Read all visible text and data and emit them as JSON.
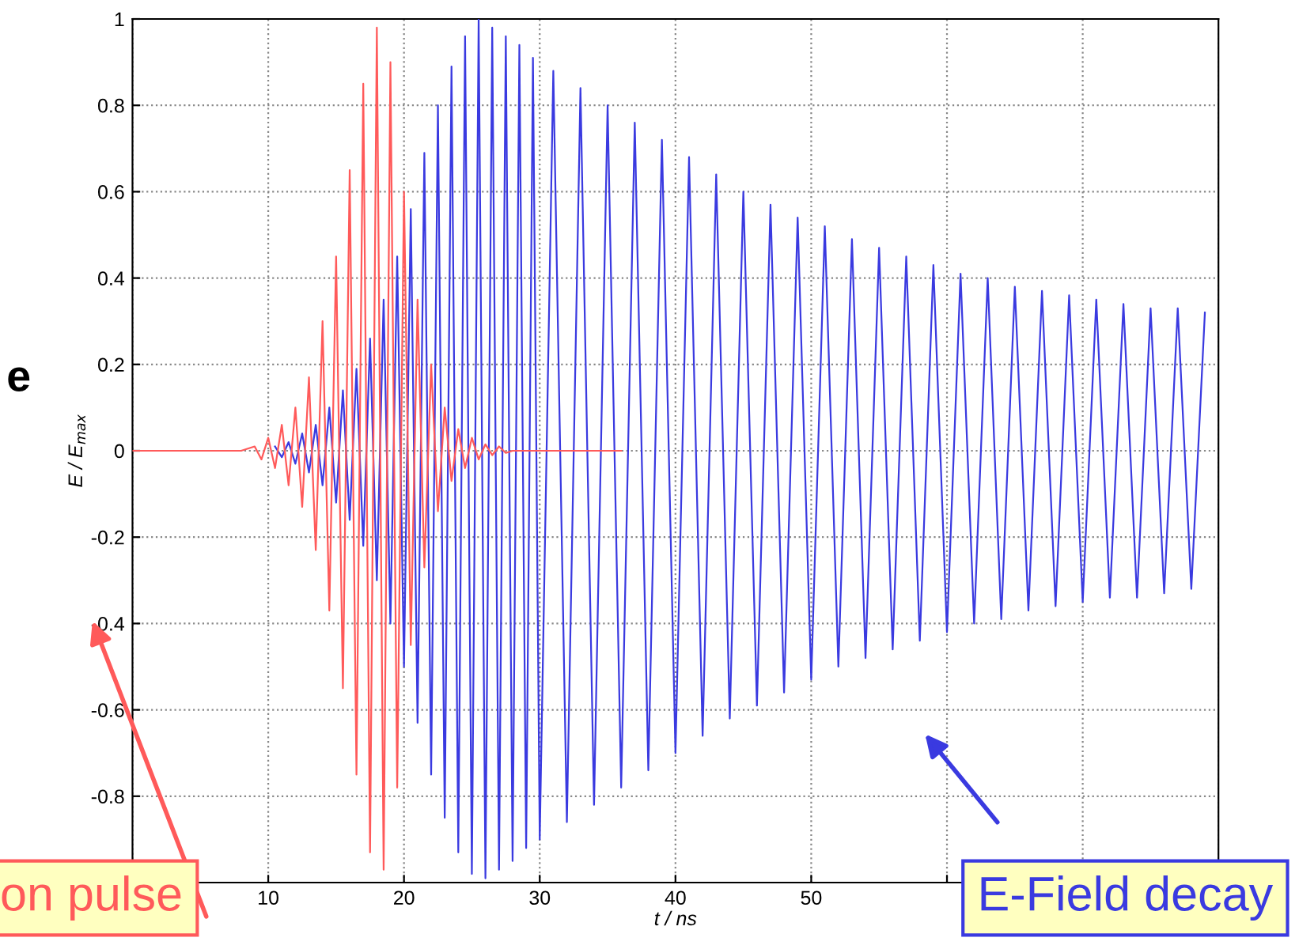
{
  "chart_data": {
    "type": "line",
    "xlabel": "t / ns",
    "ylabel": "E / E$_{max}$",
    "xlim": [
      0,
      80
    ],
    "xticks": [
      {
        "value": 0,
        "label": null
      },
      10,
      20,
      30,
      40,
      50,
      {
        "value": 60,
        "label": null
      },
      {
        "value": 70,
        "label": null
      },
      {
        "value": 80,
        "label": null
      }
    ],
    "ylim": [
      -1,
      1
    ],
    "yticks": [
      {
        "value": -1,
        "label": null
      },
      -0.8,
      -0.6,
      -0.4,
      -0.2,
      0,
      0.2,
      0.4,
      0.6,
      0.8,
      1
    ],
    "grid": true,
    "legend": false,
    "marker": "none",
    "line_style": "solid",
    "series": [
      {
        "color": "#ff5a5a",
        "x": [
          0,
          2,
          4,
          6,
          8,
          9,
          9.5,
          10,
          10.5,
          11,
          11.5,
          12,
          12.5,
          13,
          13.5,
          14,
          14.5,
          15,
          15.5,
          16,
          16.5,
          17,
          17.5,
          18,
          18.5,
          19,
          19.5,
          20,
          20.5,
          21,
          21.5,
          22,
          22.5,
          23,
          23.5,
          24,
          24.5,
          25,
          25.5,
          26,
          26.5,
          27,
          27.5,
          28,
          30,
          33,
          36
        ],
        "values": [
          0,
          0,
          0,
          0,
          0,
          0.01,
          -0.02,
          0.03,
          -0.04,
          0.06,
          -0.08,
          0.1,
          -0.13,
          0.17,
          -0.23,
          0.3,
          -0.37,
          0.45,
          -0.55,
          0.65,
          -0.75,
          0.85,
          -0.93,
          0.98,
          -0.97,
          0.9,
          -0.78,
          0.6,
          -0.45,
          0.35,
          -0.27,
          0.2,
          -0.14,
          0.1,
          -0.07,
          0.05,
          -0.04,
          0.03,
          -0.02,
          0.015,
          -0.01,
          0.01,
          -0.005,
          0,
          0,
          0,
          0
        ]
      },
      {
        "color": "#3a3ae0",
        "x": [
          10.5,
          11,
          11.5,
          12,
          12.5,
          13,
          13.5,
          14,
          14.5,
          15,
          15.5,
          16,
          16.5,
          17,
          17.5,
          18,
          18.5,
          19,
          19.5,
          20,
          20.5,
          21,
          21.5,
          22,
          22.5,
          23,
          23.5,
          24,
          24.5,
          25,
          25.5,
          26,
          26.5,
          27,
          27.5,
          28,
          28.5,
          29,
          29.5,
          30,
          31,
          32,
          33,
          34,
          35,
          36,
          37,
          38,
          39,
          40,
          41,
          42,
          43,
          44,
          45,
          46,
          47,
          48,
          49,
          50,
          51,
          52,
          53,
          54,
          55,
          56,
          57,
          58,
          59,
          60,
          61,
          62,
          63,
          64,
          65,
          66,
          67,
          68,
          69,
          70,
          71,
          72,
          73,
          74,
          75,
          76,
          77,
          78,
          79
        ],
        "values": [
          0.01,
          -0.015,
          0.02,
          -0.03,
          0.04,
          -0.05,
          0.06,
          -0.08,
          0.1,
          -0.12,
          0.14,
          -0.16,
          0.19,
          -0.22,
          0.26,
          -0.3,
          0.35,
          -0.4,
          0.45,
          -0.5,
          0.56,
          -0.63,
          0.69,
          -0.75,
          0.8,
          -0.85,
          0.89,
          -0.93,
          0.96,
          -0.98,
          1.0,
          -0.99,
          0.98,
          -0.97,
          0.96,
          -0.95,
          0.94,
          -0.92,
          0.91,
          -0.9,
          0.88,
          -0.86,
          0.84,
          -0.82,
          0.8,
          -0.78,
          0.76,
          -0.74,
          0.72,
          -0.7,
          0.68,
          -0.66,
          0.64,
          -0.62,
          0.6,
          -0.59,
          0.57,
          -0.56,
          0.54,
          -0.53,
          0.52,
          -0.5,
          0.49,
          -0.48,
          0.47,
          -0.46,
          0.45,
          -0.44,
          0.43,
          -0.42,
          0.41,
          -0.4,
          0.4,
          -0.39,
          0.38,
          -0.37,
          0.37,
          -0.36,
          0.36,
          -0.35,
          0.35,
          -0.34,
          0.34,
          -0.34,
          0.33,
          -0.33,
          0.33,
          -0.32,
          0.32
        ]
      }
    ],
    "annotations": [
      "on pulse",
      "E-Field decay",
      "e"
    ]
  }
}
